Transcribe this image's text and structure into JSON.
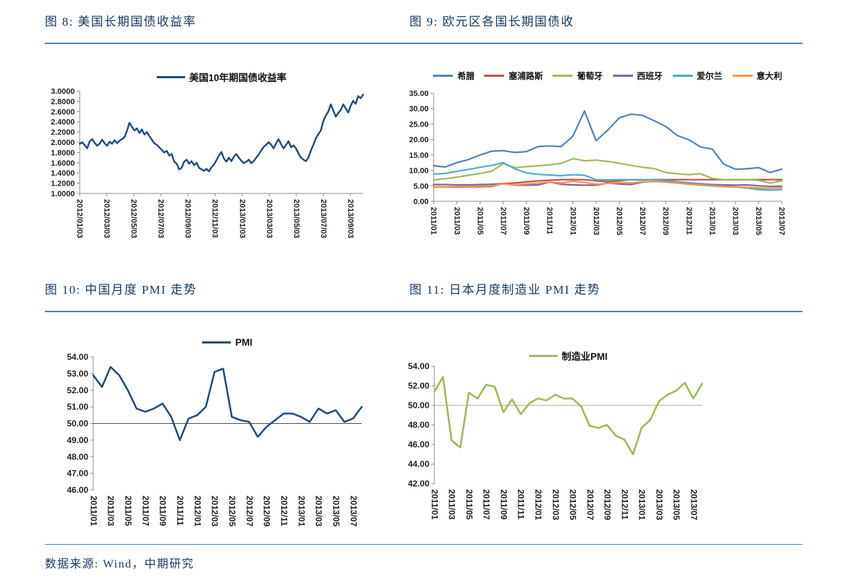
{
  "page": {
    "footer": "数据来源: Wind，中期研究",
    "accent_rule_color": "#4F81BD",
    "title_color": "#17375E"
  },
  "figures": [
    {
      "title": "图 8: 美国长期国债收益率"
    },
    {
      "title": "图 9: 欧元区各国长期国债收"
    },
    {
      "title": "图 10: 中国月度 PMI 走势"
    },
    {
      "title": "图 11: 日本月度制造业 PMI 走势"
    }
  ],
  "chart_data": [
    {
      "type": "line",
      "title": "图 8: 美国长期国债收益率",
      "legend_position": "top",
      "grid": false,
      "ylim": [
        1.0,
        3.0
      ],
      "ytick_labels": [
        "3.0000",
        "2.8000",
        "2.6000",
        "2.4000",
        "2.2000",
        "2.0000",
        "1.8000",
        "1.6000",
        "1.4000",
        "1.2000",
        "1.0000"
      ],
      "xtick_labels": [
        "2012/01/03",
        "2012/03/03",
        "2012/05/03",
        "2012/07/03",
        "2012/09/03",
        "2012/11/03",
        "2013/01/03",
        "2013/03/03",
        "2013/05/03",
        "2013/07/03",
        "2013/09/03"
      ],
      "series": [
        {
          "name": "美国10年期国债收益率",
          "color": "#1F497D",
          "values": [
            1.97,
            2.0,
            1.94,
            1.88,
            2.02,
            2.06,
            1.99,
            1.93,
            1.97,
            2.05,
            1.98,
            1.93,
            2.01,
            1.97,
            2.04,
            1.98,
            2.03,
            2.06,
            2.1,
            2.22,
            2.38,
            2.3,
            2.23,
            2.27,
            2.18,
            2.25,
            2.15,
            2.2,
            2.12,
            2.05,
            1.98,
            1.95,
            1.9,
            1.85,
            1.8,
            1.83,
            1.74,
            1.77,
            1.62,
            1.58,
            1.47,
            1.5,
            1.62,
            1.66,
            1.58,
            1.63,
            1.55,
            1.6,
            1.5,
            1.47,
            1.44,
            1.48,
            1.43,
            1.51,
            1.56,
            1.65,
            1.74,
            1.81,
            1.68,
            1.62,
            1.7,
            1.63,
            1.72,
            1.77,
            1.7,
            1.64,
            1.59,
            1.62,
            1.66,
            1.59,
            1.63,
            1.7,
            1.76,
            1.84,
            1.91,
            1.95,
            2.0,
            1.95,
            1.88,
            1.98,
            2.06,
            1.96,
            1.88,
            1.95,
            2.02,
            1.9,
            1.94,
            1.88,
            1.78,
            1.7,
            1.66,
            1.63,
            1.7,
            1.84,
            1.95,
            2.08,
            2.16,
            2.23,
            2.41,
            2.52,
            2.6,
            2.74,
            2.62,
            2.5,
            2.57,
            2.63,
            2.74,
            2.66,
            2.58,
            2.71,
            2.81,
            2.75,
            2.9,
            2.86,
            2.93
          ]
        }
      ]
    },
    {
      "type": "line",
      "title": "图 9: 欧元区各国长期国债收",
      "legend_position": "top",
      "grid": false,
      "ylim": [
        0,
        35
      ],
      "ytick_labels": [
        "35.00",
        "30.00",
        "25.00",
        "20.00",
        "15.00",
        "10.00",
        "5.00",
        "0.00"
      ],
      "xtick_labels": [
        "2011/01",
        "2011/03",
        "2011/05",
        "2011/07",
        "2011/09",
        "2011/11",
        "2012/01",
        "2012/03",
        "2012/05",
        "2012/07",
        "2012/09",
        "2012/11",
        "2013/01",
        "2013/03",
        "2013/05",
        "2013/07"
      ],
      "series": [
        {
          "name": "希腊",
          "color": "#4F81BD",
          "values": [
            11.5,
            11.1,
            12.5,
            13.5,
            15.0,
            16.2,
            16.4,
            15.8,
            16.1,
            17.7,
            17.9,
            17.7,
            21.1,
            29.2,
            19.6,
            23.0,
            27.0,
            28.2,
            27.8,
            26.1,
            24.2,
            21.3,
            19.9,
            17.6,
            16.9,
            12.0,
            10.4,
            10.5,
            10.9,
            9.3,
            10.4
          ]
        },
        {
          "name": "塞浦路斯",
          "color": "#C0504D",
          "values": [
            4.6,
            4.6,
            4.6,
            4.7,
            4.7,
            4.8,
            5.7,
            5.9,
            6.3,
            6.6,
            6.8,
            7.0,
            7.0,
            7.0,
            6.6,
            6.3,
            6.6,
            7.0,
            6.9,
            7.0,
            7.0,
            7.0,
            7.0,
            7.0,
            7.0,
            7.0,
            7.0,
            7.0,
            7.0,
            7.0,
            7.0
          ]
        },
        {
          "name": "葡萄牙",
          "color": "#9BBB59",
          "values": [
            6.9,
            7.3,
            7.8,
            8.4,
            9.0,
            9.7,
            12.2,
            10.9,
            11.2,
            11.5,
            11.8,
            12.3,
            13.8,
            13.1,
            13.3,
            12.9,
            12.3,
            11.6,
            11.0,
            10.6,
            9.3,
            8.9,
            8.6,
            8.9,
            7.4,
            7.0,
            6.9,
            7.0,
            6.8,
            5.9,
            6.6
          ]
        },
        {
          "name": "西班牙",
          "color": "#8064A2",
          "values": [
            5.4,
            5.4,
            5.3,
            5.3,
            5.4,
            5.5,
            5.7,
            5.2,
            5.2,
            5.3,
            6.2,
            5.5,
            5.3,
            5.2,
            5.2,
            5.9,
            5.6,
            5.4,
            6.2,
            6.4,
            6.3,
            6.2,
            5.9,
            5.7,
            5.4,
            5.3,
            5.2,
            5.3,
            5.0,
            4.8,
            4.9
          ]
        },
        {
          "name": "爱尔兰",
          "color": "#4BACC6",
          "values": [
            8.8,
            9.0,
            9.7,
            10.3,
            11.0,
            11.6,
            12.5,
            10.5,
            9.2,
            8.7,
            8.5,
            8.3,
            8.6,
            8.4,
            7.0,
            6.9,
            7.0,
            7.0,
            7.0,
            6.9,
            6.8,
            6.3,
            6.0,
            5.6,
            5.2,
            4.9,
            4.6,
            4.3,
            3.8,
            3.6,
            3.8
          ]
        },
        {
          "name": "意大利",
          "color": "#F79646",
          "values": [
            4.7,
            4.7,
            4.8,
            4.8,
            4.9,
            5.0,
            5.6,
            5.3,
            5.6,
            5.9,
            6.2,
            5.9,
            6.5,
            6.1,
            5.5,
            5.8,
            6.0,
            5.9,
            6.3,
            6.4,
            6.2,
            5.9,
            5.5,
            5.2,
            4.9,
            4.7,
            4.6,
            4.5,
            4.3,
            4.2,
            4.4
          ]
        }
      ]
    },
    {
      "type": "line",
      "title": "图 10: 中国月度 PMI 走势",
      "legend_position": "top",
      "grid": false,
      "ylim": [
        46,
        54
      ],
      "axis_cross_y": 50,
      "ytick_labels": [
        "54.00",
        "53.00",
        "52.00",
        "51.00",
        "50.00",
        "49.00",
        "48.00",
        "47.00",
        "46.00"
      ],
      "xtick_labels": [
        "2011/01",
        "2011/03",
        "2011/05",
        "2011/07",
        "2011/09",
        "2011/11",
        "2012/01",
        "2012/03",
        "2012/05",
        "2012/07",
        "2012/09",
        "2012/11",
        "2013/01",
        "2013/03",
        "2013/05",
        "2013/07"
      ],
      "series": [
        {
          "name": "PMI",
          "color": "#1F497D",
          "values": [
            52.9,
            52.2,
            53.4,
            52.9,
            52.0,
            50.9,
            50.7,
            50.9,
            51.2,
            50.4,
            49.0,
            50.3,
            50.5,
            51.0,
            53.1,
            53.3,
            50.4,
            50.2,
            50.1,
            49.2,
            49.8,
            50.2,
            50.6,
            50.6,
            50.4,
            50.1,
            50.9,
            50.6,
            50.8,
            50.1,
            50.3,
            51.0
          ]
        }
      ]
    },
    {
      "type": "line",
      "title": "图 11: 日本月度制造业 PMI 走势",
      "legend_position": "top",
      "grid": false,
      "ylim": [
        42,
        54
      ],
      "axis_cross_y": 50,
      "ytick_labels": [
        "54.00",
        "52.00",
        "50.00",
        "48.00",
        "46.00",
        "44.00",
        "42.00"
      ],
      "xtick_labels": [
        "2011/01",
        "2011/03",
        "2011/05",
        "2011/07",
        "2011/09",
        "2011/11",
        "2012/01",
        "2012/03",
        "2012/05",
        "2012/07",
        "2012/09",
        "2012/11",
        "2013/01",
        "2013/03",
        "2013/05",
        "2013/07"
      ],
      "series": [
        {
          "name": "制造业PMI",
          "color": "#9BBB59",
          "values": [
            51.4,
            52.9,
            46.4,
            45.7,
            51.3,
            50.7,
            52.1,
            51.9,
            49.3,
            50.6,
            49.1,
            50.2,
            50.7,
            50.5,
            51.1,
            50.7,
            50.7,
            49.9,
            47.9,
            47.7,
            48.0,
            46.9,
            46.5,
            45.0,
            47.7,
            48.5,
            50.4,
            51.1,
            51.5,
            52.3,
            50.7,
            52.2
          ]
        }
      ]
    }
  ]
}
